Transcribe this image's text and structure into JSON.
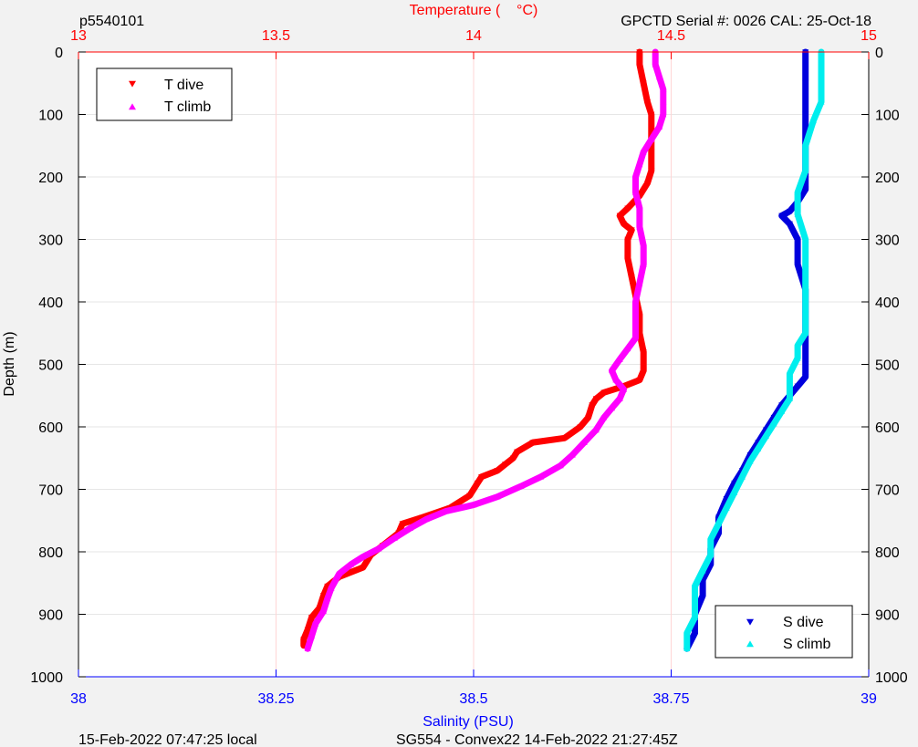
{
  "header": {
    "profile_id": "p5540101",
    "serial_info": "GPCTD Serial #: 0026 CAL: 25-Oct-18"
  },
  "footer": {
    "local_time": "15-Feb-2022 07:47:25 local",
    "mission_info": "SG554 - Convex22 14-Feb-2022 21:27:45Z"
  },
  "colors": {
    "temperature_axis": "#ff0000",
    "salinity_axis": "#0000ff",
    "t_dive": "#ff0000",
    "t_climb": "#ff00ff",
    "s_dive": "#0000dd",
    "s_climb": "#00eeee",
    "grid_temperature": "#ffd6d6",
    "grid_depth": "#e6e6e6"
  },
  "chart_data": {
    "type": "scatter",
    "y_axis": {
      "label": "Depth (m)",
      "range": [
        0,
        1000
      ],
      "reversed": true,
      "ticks": [
        0,
        100,
        200,
        300,
        400,
        500,
        600,
        700,
        800,
        900,
        1000
      ],
      "tick_labels": [
        "0",
        "100",
        "200",
        "300",
        "400",
        "500",
        "600",
        "700",
        "800",
        "900",
        "1000"
      ]
    },
    "x_axis_top": {
      "label": "Temperature (    °C)",
      "range": [
        13,
        15
      ],
      "ticks": [
        13,
        13.5,
        14,
        14.5,
        15
      ],
      "tick_labels": [
        "13",
        "13.5",
        "14",
        "14.5",
        "15"
      ]
    },
    "x_axis_bottom": {
      "label": "Salinity (PSU)",
      "range": [
        38,
        39
      ],
      "ticks": [
        38,
        38.25,
        38.5,
        38.75,
        39
      ],
      "tick_labels": [
        "38",
        "38.25",
        "38.5",
        "38.75",
        "39"
      ]
    },
    "grid": true,
    "legends": [
      {
        "position": "top-left",
        "entries": [
          "T dive",
          "T climb"
        ]
      },
      {
        "position": "bottom-right",
        "entries": [
          "S dive",
          "S climb"
        ]
      }
    ],
    "series": [
      {
        "name": "T dive",
        "axis": "temperature",
        "marker": "triangle-down",
        "points": [
          [
            14.42,
            0
          ],
          [
            14.42,
            20
          ],
          [
            14.43,
            50
          ],
          [
            14.44,
            80
          ],
          [
            14.45,
            100
          ],
          [
            14.45,
            130
          ],
          [
            14.45,
            160
          ],
          [
            14.45,
            190
          ],
          [
            14.44,
            210
          ],
          [
            14.42,
            230
          ],
          [
            14.39,
            250
          ],
          [
            14.37,
            262
          ],
          [
            14.38,
            275
          ],
          [
            14.4,
            285
          ],
          [
            14.39,
            300
          ],
          [
            14.39,
            330
          ],
          [
            14.4,
            360
          ],
          [
            14.41,
            390
          ],
          [
            14.42,
            420
          ],
          [
            14.42,
            450
          ],
          [
            14.43,
            480
          ],
          [
            14.43,
            510
          ],
          [
            14.42,
            525
          ],
          [
            14.38,
            535
          ],
          [
            14.33,
            545
          ],
          [
            14.31,
            555
          ],
          [
            14.3,
            565
          ],
          [
            14.29,
            585
          ],
          [
            14.27,
            600
          ],
          [
            14.23,
            618
          ],
          [
            14.15,
            625
          ],
          [
            14.11,
            640
          ],
          [
            14.1,
            650
          ],
          [
            14.08,
            660
          ],
          [
            14.06,
            670
          ],
          [
            14.02,
            680
          ],
          [
            14.01,
            690
          ],
          [
            13.99,
            710
          ],
          [
            13.94,
            730
          ],
          [
            13.87,
            745
          ],
          [
            13.82,
            755
          ],
          [
            13.81,
            770
          ],
          [
            13.77,
            790
          ],
          [
            13.74,
            805
          ],
          [
            13.72,
            825
          ],
          [
            13.66,
            840
          ],
          [
            13.63,
            855
          ],
          [
            13.62,
            870
          ],
          [
            13.61,
            890
          ],
          [
            13.59,
            905
          ],
          [
            13.58,
            925
          ],
          [
            13.57,
            940
          ],
          [
            13.57,
            950
          ]
        ]
      },
      {
        "name": "T climb",
        "axis": "temperature",
        "marker": "triangle-up",
        "points": [
          [
            13.58,
            955
          ],
          [
            13.59,
            935
          ],
          [
            13.6,
            915
          ],
          [
            13.62,
            895
          ],
          [
            13.63,
            875
          ],
          [
            13.64,
            858
          ],
          [
            13.66,
            835
          ],
          [
            13.69,
            820
          ],
          [
            13.72,
            808
          ],
          [
            13.76,
            795
          ],
          [
            13.8,
            778
          ],
          [
            13.84,
            762
          ],
          [
            13.88,
            748
          ],
          [
            13.93,
            735
          ],
          [
            14.0,
            725
          ],
          [
            14.06,
            712
          ],
          [
            14.12,
            695
          ],
          [
            14.17,
            680
          ],
          [
            14.22,
            662
          ],
          [
            14.25,
            645
          ],
          [
            14.28,
            625
          ],
          [
            14.31,
            605
          ],
          [
            14.33,
            585
          ],
          [
            14.35,
            570
          ],
          [
            14.37,
            555
          ],
          [
            14.38,
            540
          ],
          [
            14.36,
            525
          ],
          [
            14.35,
            510
          ],
          [
            14.37,
            492
          ],
          [
            14.39,
            475
          ],
          [
            14.41,
            458
          ],
          [
            14.41,
            440
          ],
          [
            14.41,
            420
          ],
          [
            14.41,
            400
          ],
          [
            14.42,
            370
          ],
          [
            14.43,
            340
          ],
          [
            14.43,
            310
          ],
          [
            14.42,
            280
          ],
          [
            14.42,
            250
          ],
          [
            14.41,
            225
          ],
          [
            14.41,
            200
          ],
          [
            14.42,
            180
          ],
          [
            14.43,
            160
          ],
          [
            14.45,
            140
          ],
          [
            14.47,
            120
          ],
          [
            14.48,
            100
          ],
          [
            14.48,
            80
          ],
          [
            14.48,
            60
          ],
          [
            14.47,
            40
          ],
          [
            14.46,
            20
          ],
          [
            14.46,
            0
          ]
        ]
      },
      {
        "name": "S dive",
        "axis": "salinity",
        "marker": "triangle-down",
        "points": [
          [
            38.92,
            0
          ],
          [
            38.92,
            50
          ],
          [
            38.92,
            100
          ],
          [
            38.92,
            150
          ],
          [
            38.92,
            200
          ],
          [
            38.92,
            220
          ],
          [
            38.91,
            240
          ],
          [
            38.9,
            255
          ],
          [
            38.89,
            262
          ],
          [
            38.9,
            275
          ],
          [
            38.91,
            300
          ],
          [
            38.91,
            340
          ],
          [
            38.92,
            380
          ],
          [
            38.92,
            420
          ],
          [
            38.92,
            460
          ],
          [
            38.92,
            500
          ],
          [
            38.92,
            520
          ],
          [
            38.91,
            535
          ],
          [
            38.9,
            550
          ],
          [
            38.89,
            565
          ],
          [
            38.88,
            585
          ],
          [
            38.87,
            605
          ],
          [
            38.86,
            625
          ],
          [
            38.85,
            645
          ],
          [
            38.84,
            670
          ],
          [
            38.83,
            690
          ],
          [
            38.82,
            715
          ],
          [
            38.81,
            745
          ],
          [
            38.81,
            770
          ],
          [
            38.8,
            795
          ],
          [
            38.8,
            820
          ],
          [
            38.79,
            845
          ],
          [
            38.79,
            870
          ],
          [
            38.78,
            900
          ],
          [
            38.78,
            930
          ],
          [
            38.77,
            955
          ]
        ]
      },
      {
        "name": "S climb",
        "axis": "salinity",
        "marker": "triangle-up",
        "points": [
          [
            38.77,
            955
          ],
          [
            38.77,
            930
          ],
          [
            38.78,
            905
          ],
          [
            38.78,
            880
          ],
          [
            38.78,
            855
          ],
          [
            38.79,
            830
          ],
          [
            38.8,
            805
          ],
          [
            38.8,
            780
          ],
          [
            38.81,
            755
          ],
          [
            38.82,
            730
          ],
          [
            38.83,
            705
          ],
          [
            38.84,
            680
          ],
          [
            38.85,
            655
          ],
          [
            38.86,
            635
          ],
          [
            38.87,
            615
          ],
          [
            38.88,
            595
          ],
          [
            38.89,
            575
          ],
          [
            38.9,
            555
          ],
          [
            38.9,
            535
          ],
          [
            38.9,
            515
          ],
          [
            38.91,
            490
          ],
          [
            38.91,
            470
          ],
          [
            38.92,
            450
          ],
          [
            38.92,
            420
          ],
          [
            38.92,
            380
          ],
          [
            38.92,
            340
          ],
          [
            38.92,
            300
          ],
          [
            38.91,
            260
          ],
          [
            38.91,
            225
          ],
          [
            38.92,
            190
          ],
          [
            38.92,
            150
          ],
          [
            38.93,
            110
          ],
          [
            38.94,
            80
          ],
          [
            38.94,
            50
          ],
          [
            38.94,
            20
          ],
          [
            38.94,
            0
          ]
        ]
      }
    ]
  }
}
